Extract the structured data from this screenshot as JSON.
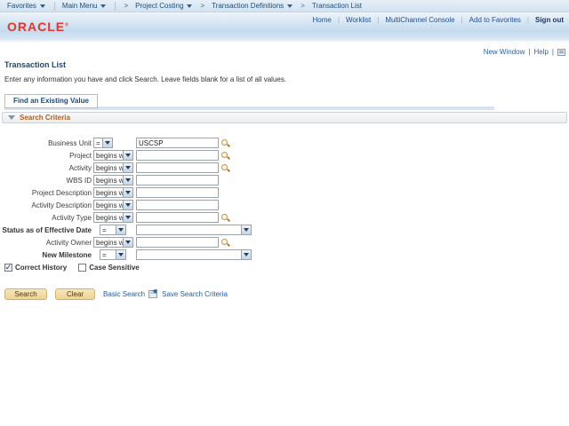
{
  "colors": {
    "oracle_red": "#e4342b",
    "link_blue": "#215da0",
    "section_orange": "#bb5c12"
  },
  "breadcrumb": {
    "menus": [
      "Favorites",
      "Main Menu"
    ],
    "path": [
      "Project Costing",
      "Transaction Definitions",
      "Transaction List"
    ]
  },
  "header": {
    "logo": "ORACLE",
    "links": [
      "Home",
      "Worklist",
      "MultiChannel Console",
      "Add to Favorites"
    ],
    "sign_out": "Sign out"
  },
  "utility": {
    "new_window": "New Window",
    "help": "Help"
  },
  "page": {
    "title": "Transaction List",
    "instruction": "Enter any information you have and click Search. Leave fields blank for a list of all values.",
    "tab": "Find an Existing Value",
    "section": "Search Criteria"
  },
  "form": {
    "rows": [
      {
        "label": "Business Unit",
        "op": "=",
        "op_style": "eq-narrow",
        "control": "input",
        "value": "USCSP",
        "lookup": true,
        "bold": false
      },
      {
        "label": "Project",
        "op": "begins with",
        "op_style": "begins",
        "control": "input",
        "value": "",
        "lookup": true,
        "bold": false
      },
      {
        "label": "Activity",
        "op": "begins with",
        "op_style": "begins",
        "control": "input",
        "value": "",
        "lookup": true,
        "bold": false
      },
      {
        "label": "WBS ID",
        "op": "begins with",
        "op_style": "begins",
        "control": "input",
        "value": "",
        "lookup": false,
        "bold": false
      },
      {
        "label": "Project Description",
        "op": "begins with",
        "op_style": "begins",
        "control": "input",
        "value": "",
        "lookup": false,
        "bold": false
      },
      {
        "label": "Activity Description",
        "op": "begins with",
        "op_style": "begins",
        "control": "input",
        "value": "",
        "lookup": false,
        "bold": false
      },
      {
        "label": "Activity Type",
        "op": "begins with",
        "op_style": "begins",
        "control": "input",
        "value": "",
        "lookup": true,
        "bold": false
      },
      {
        "label": "Status as of Effective Date",
        "op": "=",
        "op_style": "eq-wide",
        "control": "select",
        "value": "",
        "lookup": false,
        "bold": true
      },
      {
        "label": "Activity Owner",
        "op": "begins with",
        "op_style": "begins",
        "control": "input",
        "value": "",
        "lookup": true,
        "bold": false
      },
      {
        "label": "New Milestone",
        "op": "=",
        "op_style": "eq-wide",
        "control": "select",
        "value": "",
        "lookup": false,
        "bold": true
      }
    ],
    "checkboxes": [
      {
        "label": "Correct History",
        "checked": true
      },
      {
        "label": "Case Sensitive",
        "checked": false
      }
    ],
    "buttons": {
      "search": "Search",
      "clear": "Clear"
    },
    "links": {
      "basic_search": "Basic Search",
      "save_search": "Save Search Criteria"
    }
  }
}
